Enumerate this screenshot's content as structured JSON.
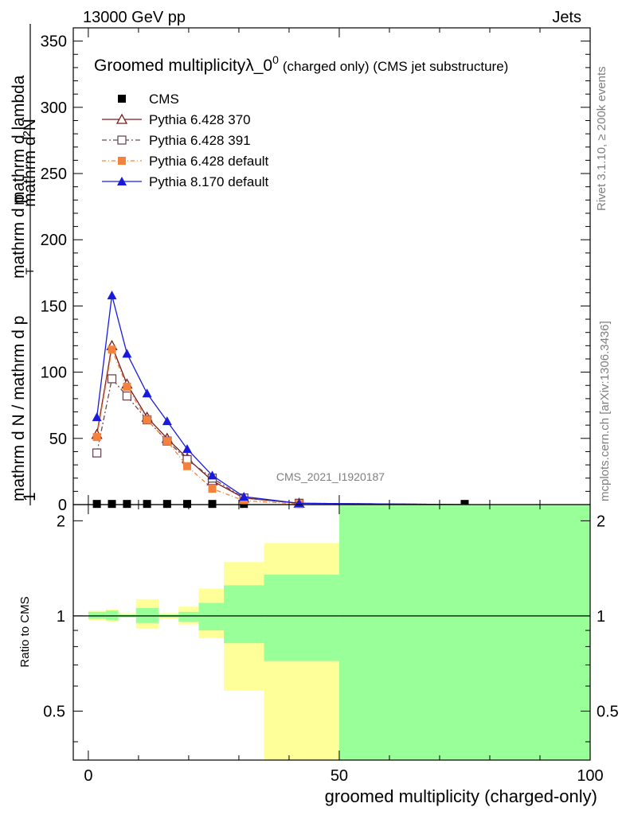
{
  "header": {
    "left": "13000 GeV pp",
    "right": "Jets"
  },
  "plot_title": "Groomed multiplicityλ_0",
  "plot_title_sup": "0",
  "plot_title_suffix": "(charged only) (CMS jet substructure)",
  "ylabel_main": {
    "numerator_left": "1",
    "numerator_right": "mathrm d²N",
    "denominator_left": "mathrm d N / mathrm d p",
    "denominator_right": "mathrm d p",
    "denominator_tail": "mathrm d lambda",
    "sub_T": "T"
  },
  "side_labels": {
    "rivet": "Rivet 3.1.10, ≥ 200k events",
    "mcplots": "mcplots.cern.ch [arXiv:1306.3436]"
  },
  "watermark": "CMS_2021_I1920187",
  "legend": [
    {
      "label": "CMS",
      "color": "#000000",
      "marker": "square-filled"
    },
    {
      "label": "Pythia 6.428 370",
      "color": "#7a1a1a",
      "marker": "triangle-open"
    },
    {
      "label": "Pythia 6.428 391",
      "color": "#6b4a55",
      "marker": "square-open"
    },
    {
      "label": "Pythia 6.428 default",
      "color": "#f5823c",
      "marker": "square-filled"
    },
    {
      "label": "Pythia 8.170 default",
      "color": "#1a1adc",
      "marker": "triangle-filled"
    }
  ],
  "ratio_ylabel": "Ratio to CMS",
  "xlabel": "groomed multiplicity (charged-only)",
  "colors": {
    "band_inner": "#99ff99",
    "band_outer": "#ffff99"
  },
  "chart_data": {
    "type": "line",
    "xlim": [
      -3,
      100
    ],
    "ylim": [
      0,
      360
    ],
    "ratio_ylim": [
      0.35,
      2.25
    ],
    "xticks": [
      0,
      50,
      100
    ],
    "yticks": [
      0,
      50,
      100,
      150,
      200,
      250,
      300,
      350
    ],
    "ratio_yticks": [
      0.5,
      1,
      2
    ],
    "bin_edges": [
      0,
      3.5,
      6,
      9.5,
      14,
      18,
      22,
      27,
      35,
      50,
      100
    ],
    "series": [
      {
        "name": "CMS",
        "x": [
          1.7,
          4.7,
          7.7,
          11.7,
          15.7,
          19.7,
          24.7,
          31,
          42,
          75
        ],
        "y": [
          0.5,
          0.5,
          0.5,
          0.5,
          0.5,
          0.5,
          0.5,
          0.5,
          0.5,
          0.5
        ]
      },
      {
        "name": "Pythia 6.428 370",
        "x": [
          1.7,
          4.7,
          7.7,
          11.7,
          15.7,
          19.7,
          24.7,
          31,
          42,
          75
        ],
        "y": [
          53,
          120,
          91,
          66,
          50,
          35,
          18,
          5,
          1,
          0
        ]
      },
      {
        "name": "Pythia 6.428 391",
        "x": [
          1.7,
          4.7,
          7.7,
          11.7,
          15.7,
          19.7,
          24.7,
          31,
          42,
          75
        ],
        "y": [
          39,
          95,
          82,
          64,
          48,
          34,
          20,
          5,
          1,
          0
        ]
      },
      {
        "name": "Pythia 6.428 default",
        "x": [
          1.7,
          4.7,
          7.7,
          11.7,
          15.7,
          19.7,
          24.7,
          31,
          42,
          75
        ],
        "y": [
          51,
          117,
          89,
          64,
          48,
          29,
          12,
          3,
          0.5,
          0
        ]
      },
      {
        "name": "Pythia 8.170 default",
        "x": [
          1.7,
          4.7,
          7.7,
          11.7,
          15.7,
          19.7,
          24.7,
          31,
          42,
          75
        ],
        "y": [
          66,
          158,
          114,
          84,
          63,
          42,
          22,
          6,
          1,
          0
        ]
      }
    ],
    "ratio_bands": [
      {
        "x0": 0,
        "x1": 3.5,
        "outer": [
          0.97,
          1.04
        ],
        "inner": [
          0.98,
          1.03
        ]
      },
      {
        "x0": 3.5,
        "x1": 6,
        "outer": [
          0.96,
          1.05
        ],
        "inner": [
          0.97,
          1.04
        ]
      },
      {
        "x0": 6,
        "x1": 9.5,
        "outer": [
          0.99,
          1.02
        ],
        "inner": [
          0.99,
          1.01
        ]
      },
      {
        "x0": 9.5,
        "x1": 14,
        "outer": [
          0.91,
          1.13
        ],
        "inner": [
          0.95,
          1.06
        ]
      },
      {
        "x0": 14,
        "x1": 18,
        "outer": [
          0.98,
          1.02
        ],
        "inner": [
          0.99,
          1.01
        ]
      },
      {
        "x0": 18,
        "x1": 22,
        "outer": [
          0.94,
          1.07
        ],
        "inner": [
          0.96,
          1.03
        ]
      },
      {
        "x0": 22,
        "x1": 27,
        "outer": [
          0.85,
          1.22
        ],
        "inner": [
          0.9,
          1.1
        ]
      },
      {
        "x0": 27,
        "x1": 35,
        "outer": [
          0.58,
          1.48
        ],
        "inner": [
          0.82,
          1.25
        ]
      },
      {
        "x0": 35,
        "x1": 50,
        "outer": [
          0.35,
          1.7
        ],
        "inner": [
          0.72,
          1.35
        ]
      },
      {
        "x0": 50,
        "x1": 100,
        "outer": [
          0.35,
          2.25
        ],
        "inner": [
          0.35,
          2.25
        ]
      }
    ]
  }
}
